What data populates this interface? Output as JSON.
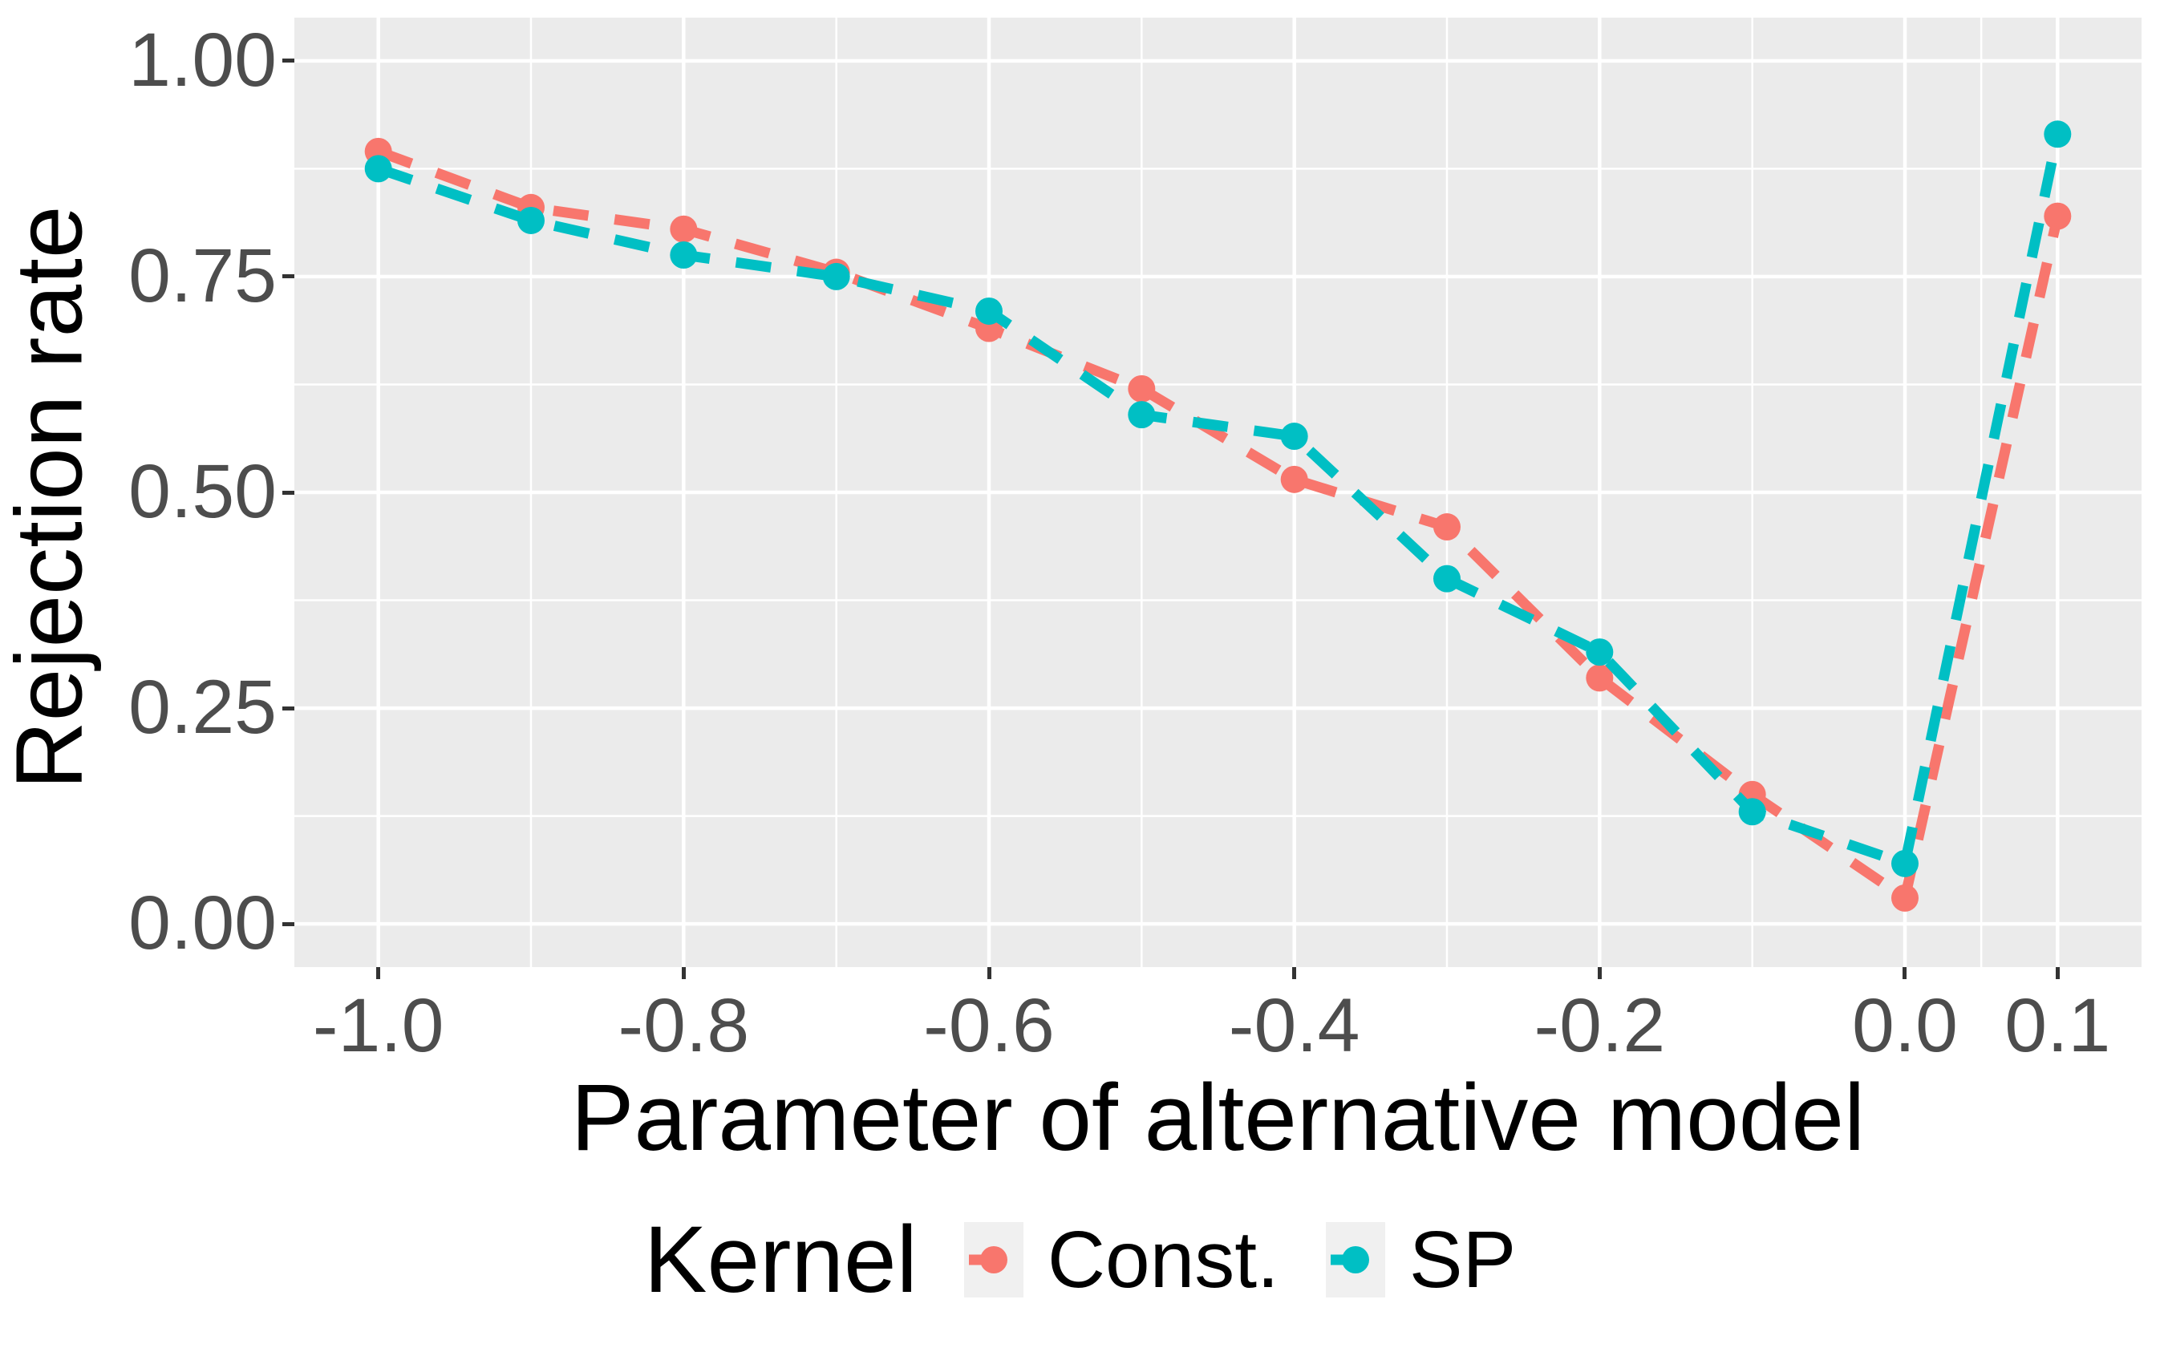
{
  "chart_data": {
    "type": "line",
    "title": "",
    "xlabel": "Parameter of alternative model",
    "ylabel": "Rejection rate",
    "x": [
      -1.0,
      -0.9,
      -0.8,
      -0.7,
      -0.6,
      -0.5,
      -0.4,
      -0.3,
      -0.2,
      -0.1,
      0.0,
      0.1
    ],
    "series": [
      {
        "name": "Const.",
        "color": "#F8766D",
        "values": [
          0.895,
          0.83,
          0.805,
          0.755,
          0.69,
          0.62,
          0.515,
          0.46,
          0.285,
          0.15,
          0.03,
          0.82
        ]
      },
      {
        "name": "SP",
        "color": "#00BFC4",
        "values": [
          0.875,
          0.815,
          0.775,
          0.75,
          0.71,
          0.59,
          0.565,
          0.4,
          0.315,
          0.13,
          0.07,
          0.915
        ]
      }
    ],
    "x_ticks": {
      "values": [
        -1.0,
        -0.8,
        -0.6,
        -0.4,
        -0.2,
        0.0,
        0.1
      ],
      "labels": [
        "-1.0",
        "-0.8",
        "-0.6",
        "-0.4",
        "-0.2",
        "0.0",
        "0.1"
      ]
    },
    "y_ticks": {
      "values": [
        0.0,
        0.25,
        0.5,
        0.75,
        1.0
      ],
      "labels": [
        "0.00",
        "0.25",
        "0.50",
        "0.75",
        "1.00"
      ]
    },
    "x_minor": [
      -0.9,
      -0.7,
      -0.5,
      -0.3,
      -0.1,
      0.05
    ],
    "y_minor": [
      0.125,
      0.375,
      0.625,
      0.875
    ],
    "xlim": [
      -1.055,
      0.155
    ],
    "ylim": [
      -0.05,
      1.05
    ],
    "grid": true,
    "legend": {
      "title": "Kernel",
      "position": "bottom",
      "entries": [
        "Const.",
        "SP"
      ]
    },
    "style": {
      "panel_bg": "#EBEBEB",
      "grid_color": "#FFFFFF",
      "major_grid_width": 4.5,
      "minor_grid_width": 2.5,
      "tick_color": "#333333",
      "tick_label_color": "#4D4D4D",
      "line_width": 13,
      "dash_pattern": "44 33",
      "marker_radius": 17,
      "legend_key_bg": "#F0F0F0"
    }
  }
}
